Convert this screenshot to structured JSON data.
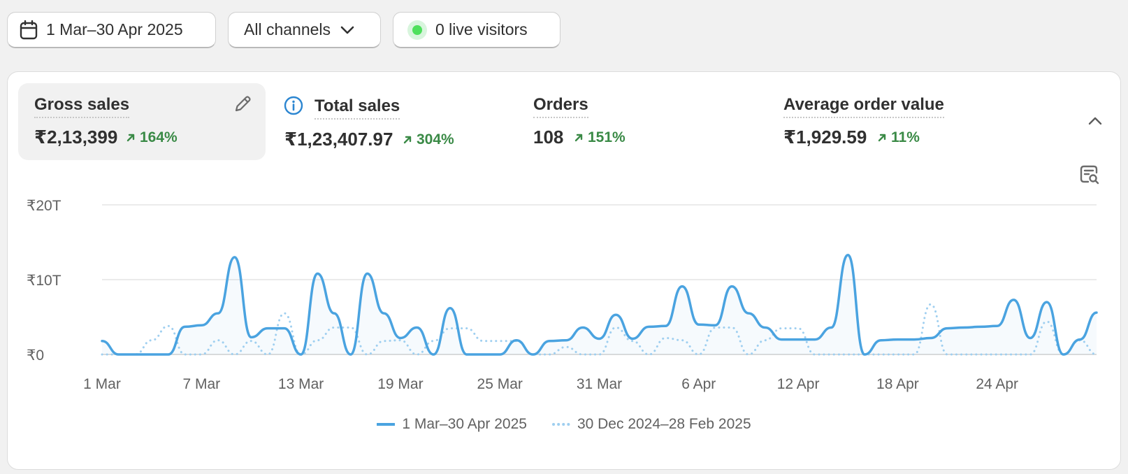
{
  "filters": {
    "date_range": "1 Mar–30 Apr 2025",
    "channels": "All channels",
    "live_visitors": "0 live visitors"
  },
  "metrics": [
    {
      "title": "Gross sales",
      "value": "₹2,13,399",
      "change": "164%",
      "trend": "up",
      "selected": true
    },
    {
      "title": "Total sales",
      "value": "₹1,23,407.97",
      "change": "304%",
      "trend": "up"
    },
    {
      "title": "Orders",
      "value": "108",
      "change": "151%",
      "trend": "up"
    },
    {
      "title": "Average order value",
      "value": "₹1,929.59",
      "change": "11%",
      "trend": "up"
    }
  ],
  "icons": {
    "calendar": "calendar-icon",
    "chevron": "chevron-down-icon",
    "edit": "pencil-icon",
    "info": "info-icon",
    "collapse": "chevron-up-icon",
    "inspect": "chart-search-icon"
  },
  "colors": {
    "primary_series": "#4aa3e0",
    "comparison_series": "#9fcff0",
    "positive": "#3a8a46",
    "live": "#4ee05c"
  },
  "chart_data": {
    "type": "line",
    "ylim": [
      0,
      20
    ],
    "y_ticks": [
      "₹0",
      "₹10T",
      "₹20T"
    ],
    "x_tick_labels": [
      "1 Mar",
      "7 Mar",
      "13 Mar",
      "19 Mar",
      "25 Mar",
      "31 Mar",
      "6 Apr",
      "12 Apr",
      "18 Apr",
      "24 Apr"
    ],
    "grid": true,
    "legend_position": "bottom-center",
    "series": [
      {
        "name": "1 Mar–30 Apr 2025",
        "style": "solid",
        "values": [
          1.8,
          0,
          0,
          0,
          0,
          3.7,
          3.9,
          5.5,
          13,
          2.3,
          3.5,
          3.5,
          0,
          10.8,
          5.5,
          0,
          10.8,
          5.5,
          2.2,
          3.6,
          0,
          6.2,
          0,
          0,
          0,
          1.9,
          0,
          1.8,
          1.9,
          3.6,
          2.1,
          5.3,
          2.1,
          3.7,
          3.8,
          9.1,
          4.0,
          3.9,
          9.1,
          5.5,
          3.6,
          2.0,
          2.0,
          2.0,
          3.6,
          13.3,
          0,
          1.9,
          2.0,
          2.0,
          2.2,
          3.5,
          3.6,
          3.7,
          3.8,
          7.3,
          2.2,
          7.0,
          0,
          2.0,
          5.6
        ]
      },
      {
        "name": "30 Dec 2024–28 Feb 2025",
        "style": "dotted",
        "values": [
          0,
          0,
          0,
          1.9,
          3.8,
          0,
          0,
          1.9,
          0,
          1.8,
          0,
          5.5,
          0,
          1.9,
          3.6,
          3.6,
          0,
          1.8,
          1.9,
          0,
          1.8,
          3.5,
          3.5,
          1.8,
          1.8,
          1.8,
          0,
          0,
          1.0,
          0,
          0,
          3.6,
          1.8,
          0,
          2.2,
          1.9,
          0,
          3.6,
          3.6,
          0,
          1.9,
          3.5,
          3.5,
          0,
          0,
          0,
          0,
          0,
          0,
          0,
          6.7,
          0,
          0,
          0,
          0,
          0,
          0,
          4.4,
          0,
          1.9,
          0
        ]
      }
    ]
  }
}
